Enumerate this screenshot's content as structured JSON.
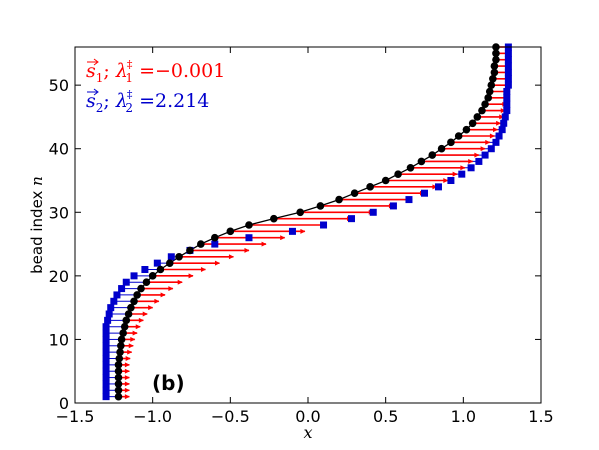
{
  "chart_data": {
    "type": "line",
    "panel_label": "(b)",
    "xlabel": "x",
    "ylabel_prefix": "bead index ",
    "ylabel_var": "n",
    "xlim": [
      -1.5,
      1.5
    ],
    "ylim": [
      0,
      56
    ],
    "xticks": [
      "−1.5",
      "−1.0",
      "−0.5",
      "0.0",
      "0.5",
      "1.0",
      "1.5"
    ],
    "yticks": [
      "0",
      "10",
      "20",
      "30",
      "40",
      "50"
    ],
    "colors": {
      "chain": "#000000",
      "s1": "#ff0000",
      "s2": "#0000cc"
    },
    "legend": [
      {
        "vec": "s",
        "sub": "1",
        "lam_sub": "1",
        "value": "−0.001",
        "color": "#ff0000"
      },
      {
        "vec": "s",
        "sub": "2",
        "lam_sub": "2",
        "value": "2.214",
        "color": "#0000cc"
      }
    ],
    "beads": [
      1,
      2,
      3,
      4,
      5,
      6,
      7,
      8,
      9,
      10,
      11,
      12,
      13,
      14,
      15,
      16,
      17,
      18,
      19,
      20,
      21,
      22,
      23,
      24,
      25,
      26,
      27,
      28,
      29,
      30,
      31,
      32,
      33,
      34,
      35,
      36,
      37,
      38,
      39,
      40,
      41,
      42,
      43,
      44,
      45,
      46,
      47,
      48,
      49,
      50,
      51,
      52,
      53,
      54,
      55,
      56
    ],
    "chain_x": [
      -1.22,
      -1.22,
      -1.22,
      -1.22,
      -1.22,
      -1.22,
      -1.215,
      -1.21,
      -1.205,
      -1.2,
      -1.19,
      -1.18,
      -1.17,
      -1.155,
      -1.14,
      -1.12,
      -1.1,
      -1.075,
      -1.04,
      -1.0,
      -0.95,
      -0.89,
      -0.83,
      -0.76,
      -0.69,
      -0.6,
      -0.5,
      -0.38,
      -0.22,
      -0.05,
      0.08,
      0.2,
      0.3,
      0.4,
      0.5,
      0.58,
      0.66,
      0.73,
      0.8,
      0.86,
      0.92,
      0.97,
      1.02,
      1.06,
      1.09,
      1.12,
      1.14,
      1.16,
      1.17,
      1.18,
      1.19,
      1.2,
      1.2,
      1.21,
      1.21,
      1.21
    ],
    "s1_tip_x": [
      -1.15,
      -1.15,
      -1.15,
      -1.15,
      -1.15,
      -1.15,
      -1.145,
      -1.135,
      -1.125,
      -1.115,
      -1.1,
      -1.08,
      -1.06,
      -1.035,
      -1.0,
      -0.96,
      -0.92,
      -0.87,
      -0.81,
      -0.74,
      -0.66,
      -0.57,
      -0.48,
      -0.38,
      -0.27,
      -0.15,
      -0.02,
      0.12,
      0.28,
      0.42,
      0.55,
      0.66,
      0.75,
      0.83,
      0.9,
      0.96,
      1.01,
      1.06,
      1.1,
      1.14,
      1.17,
      1.2,
      1.22,
      1.24,
      1.26,
      1.27,
      1.28,
      1.29,
      1.3,
      1.3,
      1.3,
      1.3,
      1.3,
      1.3,
      1.3,
      1.3
    ],
    "s2_x": [
      -1.3,
      -1.3,
      -1.3,
      -1.3,
      -1.3,
      -1.3,
      -1.3,
      -1.3,
      -1.3,
      -1.3,
      -1.3,
      -1.3,
      -1.29,
      -1.28,
      -1.27,
      -1.25,
      -1.23,
      -1.2,
      -1.17,
      -1.12,
      -1.05,
      -0.97,
      -0.88,
      -0.76,
      -0.6,
      -0.38,
      -0.1,
      0.1,
      0.28,
      0.42,
      0.55,
      0.65,
      0.75,
      0.84,
      0.92,
      0.99,
      1.05,
      1.1,
      1.14,
      1.18,
      1.21,
      1.23,
      1.25,
      1.26,
      1.27,
      1.28,
      1.28,
      1.28,
      1.28,
      1.29,
      1.29,
      1.29,
      1.29,
      1.29,
      1.29,
      1.29
    ]
  }
}
